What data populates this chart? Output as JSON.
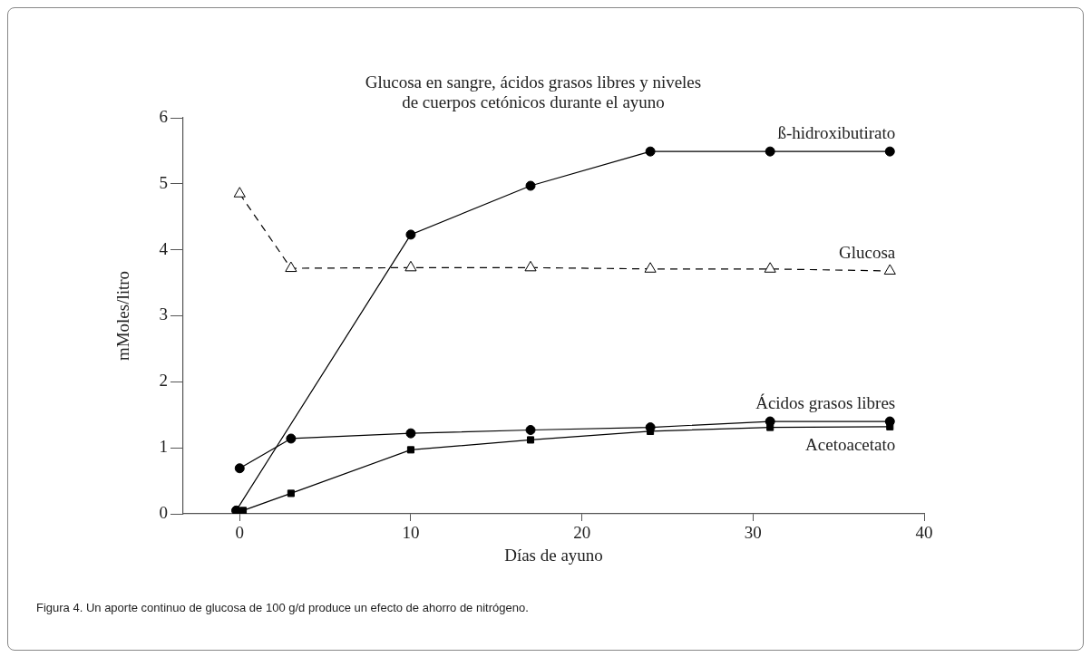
{
  "chart_data": {
    "type": "line",
    "title": "Glucosa en sangre, ácidos grasos libres y niveles\nde cuerpos cetónicos durante el ayuno",
    "xlabel": "Días de ayuno",
    "ylabel": "mMoles/litro",
    "xlim": [
      -3.3,
      40
    ],
    "xticks": [
      0,
      10,
      20,
      30,
      40
    ],
    "ylim": [
      0,
      6
    ],
    "yticks": [
      0,
      1,
      2,
      3,
      4,
      5,
      6
    ],
    "grid": false,
    "legend": false,
    "annotations": [
      "Figura 4. Un aporte continuo de glucosa de 100 g/d produce un efecto de ahorro de nitrógeno."
    ],
    "series": [
      {
        "name": "ß-hidroxibutirato",
        "color": "#000000",
        "marker": "circle",
        "line_style": "solid",
        "x": [
          -0.2,
          10,
          17,
          24,
          31,
          38
        ],
        "values": [
          0.05,
          4.23,
          4.97,
          5.49,
          5.49,
          5.49
        ]
      },
      {
        "name": "Glucosa",
        "color": "#000000",
        "marker": "triangle",
        "line_style": "dashed",
        "x": [
          0,
          3,
          10,
          17,
          24,
          31,
          38
        ],
        "values": [
          4.85,
          3.72,
          3.73,
          3.73,
          3.71,
          3.71,
          3.68
        ]
      },
      {
        "name": "Ácidos grasos libres",
        "color": "#000000",
        "marker": "circle",
        "line_style": "solid",
        "x": [
          0,
          3,
          10,
          17,
          24,
          31,
          38
        ],
        "values": [
          0.69,
          1.14,
          1.22,
          1.27,
          1.31,
          1.4,
          1.4
        ]
      },
      {
        "name": "Acetoacetato",
        "color": "#000000",
        "marker": "square",
        "line_style": "solid",
        "x": [
          0.2,
          3,
          10,
          17,
          24,
          31,
          38
        ],
        "values": [
          0.05,
          0.31,
          0.97,
          1.12,
          1.25,
          1.31,
          1.32
        ]
      }
    ]
  }
}
